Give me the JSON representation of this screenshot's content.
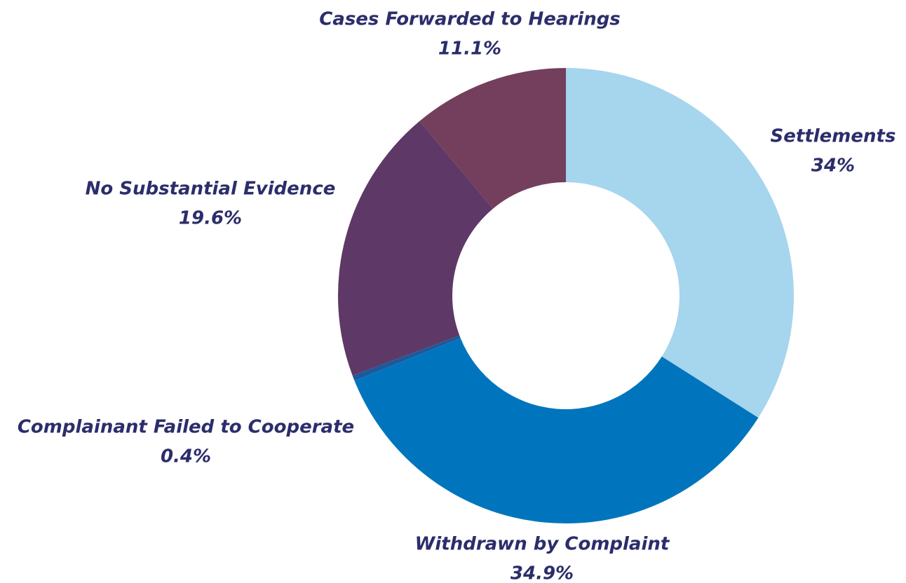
{
  "chart_data": {
    "type": "donut",
    "categories": [
      "Settlements",
      "Withdrawn by Complaint",
      "Complainant Failed to Cooperate",
      "No Substantial Evidence",
      "Cases Forwarded to Hearings"
    ],
    "values": [
      34,
      34.9,
      0.4,
      19.6,
      11.1
    ],
    "value_labels": [
      "34%",
      "34.9%",
      "0.4%",
      "19.6%",
      "11.1%"
    ],
    "colors": [
      "#a6d5ee",
      "#0075bd",
      "#1d5a9c",
      "#5e3866",
      "#733f5c"
    ]
  }
}
